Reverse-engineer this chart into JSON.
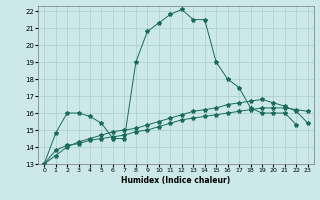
{
  "title": "",
  "xlabel": "Humidex (Indice chaleur)",
  "background_color": "#cce8e8",
  "grid_color": "#aacece",
  "line_color": "#1a6b5a",
  "xlim": [
    -0.5,
    23.5
  ],
  "ylim": [
    13,
    22.3
  ],
  "xticks": [
    0,
    1,
    2,
    3,
    4,
    5,
    6,
    7,
    8,
    9,
    10,
    11,
    12,
    13,
    14,
    15,
    16,
    17,
    18,
    19,
    20,
    21,
    22,
    23
  ],
  "yticks": [
    13,
    14,
    15,
    16,
    17,
    18,
    19,
    20,
    21,
    22
  ],
  "line1_x": [
    0,
    1,
    2,
    3,
    4,
    5,
    6,
    7,
    8,
    9,
    10,
    11,
    12,
    13,
    14,
    15,
    16,
    17,
    18,
    19,
    20,
    21,
    22
  ],
  "line1_y": [
    13.0,
    14.8,
    16.0,
    16.0,
    15.8,
    15.4,
    14.5,
    14.5,
    19.0,
    20.8,
    21.3,
    21.8,
    22.1,
    21.5,
    21.5,
    19.0,
    18.0,
    17.5,
    16.3,
    16.0,
    16.0,
    16.0,
    15.3
  ],
  "line2_x": [
    0,
    1,
    2,
    3,
    4,
    5,
    6,
    7,
    8,
    9,
    10,
    11,
    12,
    13,
    14,
    15,
    16,
    17,
    18,
    19,
    20,
    21,
    22,
    23
  ],
  "line2_y": [
    13.0,
    13.8,
    14.1,
    14.2,
    14.4,
    14.5,
    14.6,
    14.7,
    14.9,
    15.0,
    15.2,
    15.4,
    15.6,
    15.7,
    15.8,
    15.9,
    16.0,
    16.1,
    16.2,
    16.3,
    16.3,
    16.3,
    16.2,
    16.1
  ],
  "line3_x": [
    0,
    1,
    2,
    3,
    4,
    5,
    6,
    7,
    8,
    9,
    10,
    11,
    12,
    13,
    14,
    15,
    16,
    17,
    18,
    19,
    20,
    21,
    22,
    23
  ],
  "line3_y": [
    13.0,
    13.5,
    14.0,
    14.3,
    14.5,
    14.7,
    14.9,
    15.0,
    15.1,
    15.3,
    15.5,
    15.7,
    15.9,
    16.1,
    16.2,
    16.3,
    16.5,
    16.6,
    16.7,
    16.8,
    16.6,
    16.4,
    16.1,
    15.4
  ]
}
